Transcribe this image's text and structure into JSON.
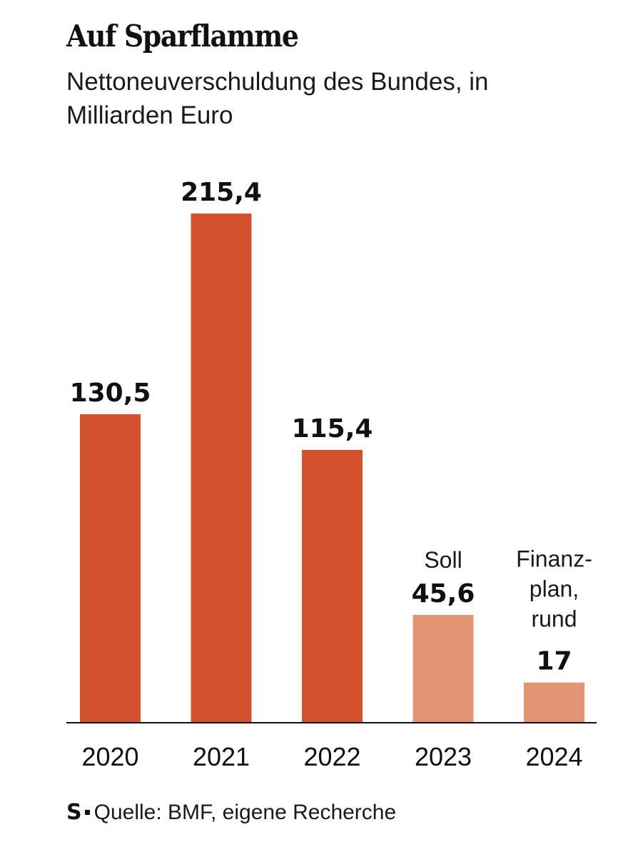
{
  "header": {
    "title": "Auf Sparflamme",
    "subtitle": "Nettoneuverschuldung des Bundes, in Milliarden Euro"
  },
  "source": {
    "logo": "S",
    "text": "Quelle: BMF, eigene Recherche"
  },
  "colors": {
    "actual": "#d3512c",
    "planned": "#e39472",
    "axis": "#111111"
  },
  "chart_data": {
    "type": "bar",
    "title": "Auf Sparflamme",
    "subtitle": "Nettoneuverschuldung des Bundes, in Milliarden Euro",
    "xlabel": "",
    "ylabel": "",
    "ylim": [
      0,
      220
    ],
    "grid": false,
    "categories": [
      "2020",
      "2021",
      "2022",
      "2023",
      "2024"
    ],
    "values": [
      130.5,
      215.4,
      115.4,
      45.6,
      17
    ],
    "value_labels": [
      "130,5",
      "215,4",
      "115,4",
      "45,6",
      "17"
    ],
    "annotations": [
      [],
      [],
      [],
      [
        "Soll"
      ],
      [
        "Finanz-",
        "plan,",
        "rund"
      ]
    ],
    "status": [
      "actual",
      "actual",
      "actual",
      "planned",
      "planned"
    ]
  }
}
